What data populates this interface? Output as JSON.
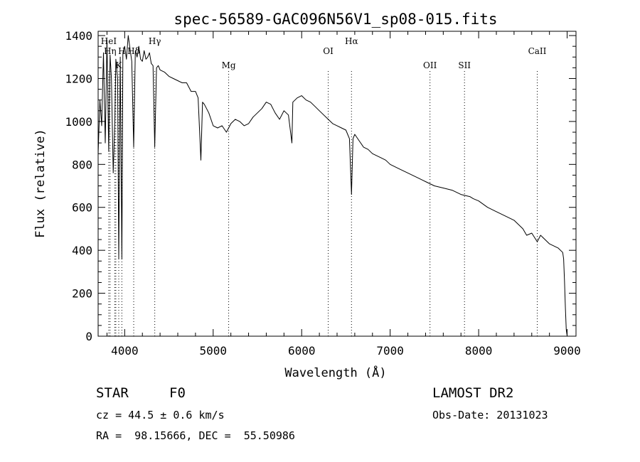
{
  "chart_data": {
    "type": "line",
    "title": "spec-56589-GAC096N56V1_sp08-015.fits",
    "xlabel": "Wavelength (Å)",
    "ylabel": "Flux (relative)",
    "xlim": [
      3700,
      9100
    ],
    "ylim": [
      0,
      1420
    ],
    "x_ticks": [
      4000,
      5000,
      6000,
      7000,
      8000,
      9000
    ],
    "y_ticks": [
      0,
      200,
      400,
      600,
      800,
      1000,
      1200,
      1400
    ],
    "grid": false,
    "series": [
      {
        "x": [
          3700,
          3720,
          3740,
          3760,
          3780,
          3800,
          3820,
          3835,
          3850,
          3870,
          3889,
          3900,
          3920,
          3933,
          3950,
          3968,
          3980,
          4000,
          4020,
          4040,
          4060,
          4080,
          4102,
          4120,
          4140,
          4160,
          4180,
          4200,
          4220,
          4240,
          4260,
          4280,
          4300,
          4320,
          4340,
          4360,
          4380,
          4400,
          4450,
          4500,
          4550,
          4600,
          4650,
          4700,
          4750,
          4800,
          4830,
          4861,
          4880,
          4900,
          4950,
          5000,
          5050,
          5100,
          5150,
          5200,
          5250,
          5300,
          5350,
          5400,
          5450,
          5500,
          5550,
          5600,
          5650,
          5700,
          5750,
          5800,
          5850,
          5890,
          5900,
          5950,
          6000,
          6050,
          6100,
          6150,
          6200,
          6250,
          6300,
          6350,
          6400,
          6450,
          6500,
          6540,
          6563,
          6580,
          6600,
          6650,
          6700,
          6750,
          6800,
          6850,
          6900,
          6950,
          7000,
          7100,
          7200,
          7300,
          7400,
          7500,
          7600,
          7700,
          7800,
          7900,
          7940,
          8000,
          8100,
          8200,
          8300,
          8400,
          8450,
          8500,
          8542,
          8600,
          8662,
          8700,
          8750,
          8800,
          8850,
          8900,
          8950,
          8960,
          8970,
          8980,
          8990,
          9000
        ],
        "y": [
          850,
          1100,
          980,
          1320,
          900,
          1380,
          860,
          1310,
          1200,
          760,
          1000,
          1290,
          1200,
          360,
          1300,
          360,
          1320,
          1350,
          1290,
          1400,
          1340,
          1280,
          880,
          1330,
          1300,
          1350,
          1290,
          1280,
          1330,
          1290,
          1300,
          1320,
          1270,
          1260,
          880,
          1250,
          1260,
          1240,
          1230,
          1210,
          1200,
          1190,
          1180,
          1180,
          1140,
          1140,
          1110,
          820,
          1090,
          1080,
          1040,
          980,
          970,
          980,
          950,
          990,
          1010,
          1000,
          980,
          990,
          1020,
          1040,
          1060,
          1090,
          1080,
          1040,
          1010,
          1050,
          1030,
          900,
          1090,
          1110,
          1120,
          1100,
          1090,
          1070,
          1050,
          1030,
          1010,
          990,
          980,
          970,
          960,
          920,
          660,
          920,
          940,
          910,
          880,
          870,
          850,
          840,
          830,
          820,
          800,
          780,
          760,
          740,
          720,
          700,
          690,
          680,
          660,
          650,
          640,
          630,
          600,
          580,
          560,
          540,
          520,
          500,
          470,
          480,
          440,
          470,
          450,
          430,
          420,
          410,
          390,
          360,
          260,
          130,
          30,
          0
        ]
      }
    ],
    "line_annotations": [
      {
        "label": "HeI",
        "x": 3820,
        "row": 0
      },
      {
        "label": "Hη",
        "x": 3835,
        "row": 1
      },
      {
        "label": "K",
        "x": 3933,
        "row": 2
      },
      {
        "label": "H",
        "x": 3968,
        "row": 1
      },
      {
        "label": "Hδ",
        "x": 4102,
        "row": 1
      },
      {
        "label": "Hγ",
        "x": 4340,
        "row": 0
      },
      {
        "label": "Mg",
        "x": 5175,
        "row": 2
      },
      {
        "label": "OI",
        "x": 6300,
        "row": 1
      },
      {
        "label": "Hα",
        "x": 6563,
        "row": 0
      },
      {
        "label": "OII",
        "x": 7450,
        "row": 2
      },
      {
        "label": "SII",
        "x": 7840,
        "row": 2
      },
      {
        "label": "CaII",
        "x": 8662,
        "row": 1
      }
    ],
    "extra_marker_lines": [
      3889,
      3900,
      3933,
      3968
    ]
  },
  "info": {
    "class_label": "STAR",
    "subclass": "F0",
    "survey": "LAMOST DR2",
    "cz": "cz = 44.5 ± 0.6 km/s",
    "obs_date": "Obs-Date: 20131023",
    "coords": "RA =  98.15666, DEC =  55.50986"
  }
}
